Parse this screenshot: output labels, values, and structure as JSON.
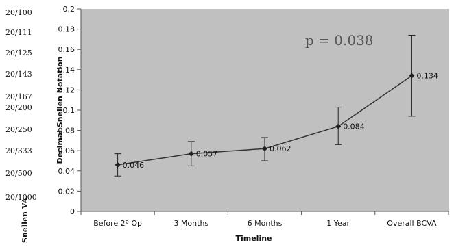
{
  "chart_data": {
    "type": "line",
    "title": "",
    "xlabel": "Timeline",
    "ylabel": "Decimal Snellen Notation",
    "secondary_ylabel": "Snellen VA",
    "ylim": [
      0,
      0.2
    ],
    "yticks": [
      "0",
      "0.02",
      "0.04",
      "0.06",
      "0.08",
      "0.1",
      "0.12",
      "0.14",
      "0.16",
      "0.18",
      "0.2"
    ],
    "snellen_ticks": [
      "20/100",
      "20/111",
      "20/125",
      "20/143",
      "20/167",
      "20/200",
      "20/250",
      "20/333",
      "20/500",
      "20/1000"
    ],
    "categories": [
      "Before 2º Op",
      "3 Months",
      "6 Months",
      "1 Year",
      "Overall BCVA"
    ],
    "values": [
      0.046,
      0.057,
      0.062,
      0.084,
      0.134
    ],
    "value_labels": [
      "0.046",
      "0.057",
      "0.062",
      "0.084",
      "0.134"
    ],
    "error_low": [
      0.035,
      0.045,
      0.05,
      0.066,
      0.094
    ],
    "error_high": [
      0.057,
      0.069,
      0.073,
      0.103,
      0.174
    ],
    "annotation": "p = 0.038",
    "grid": false,
    "colors": {
      "plot_bg": "#c0c0c0",
      "line": "#333333"
    }
  }
}
